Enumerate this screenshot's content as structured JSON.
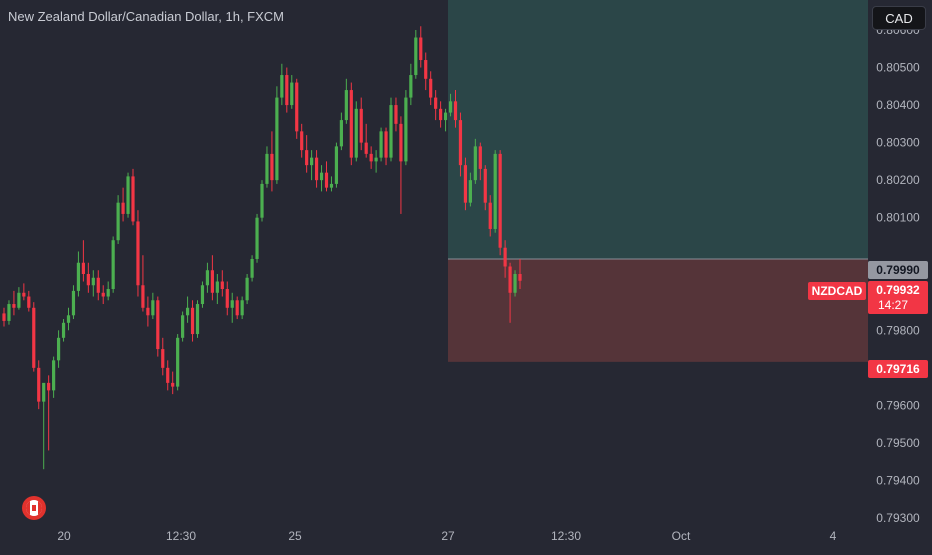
{
  "header": {
    "title": "New Zealand Dollar/Canadian Dollar, 1h, FXCM",
    "currency_button": "CAD"
  },
  "colors": {
    "background": "#262833",
    "bull": "#4caf50",
    "bear": "#f23645",
    "profit_zone": "#2b4648",
    "loss_zone": "#553439",
    "axis_text": "#b2b5be"
  },
  "price_tags": {
    "entry": "0.79990",
    "current": "0.79932",
    "countdown": "14:27",
    "symbol": "NZDCAD",
    "stop": "0.79716"
  },
  "chart_data": {
    "type": "candlestick",
    "symbol": "NZDCAD",
    "timeframe": "1h",
    "y_ticks": [
      "0.80600",
      "0.80500",
      "0.80400",
      "0.80300",
      "0.80200",
      "0.80100",
      "0.79800",
      "0.79700",
      "0.79600",
      "0.79500",
      "0.79400",
      "0.79300"
    ],
    "x_ticks": [
      "20",
      "12:30",
      "25",
      "27",
      "12:30",
      "Oct",
      "4"
    ],
    "ylim": [
      0.793,
      0.807
    ],
    "position": {
      "type": "long",
      "entry": 0.7999,
      "stop": 0.79716,
      "target": 0.807
    },
    "candles": [
      [
        0.79845,
        0.7986,
        0.7981,
        0.79825
      ],
      [
        0.79825,
        0.7988,
        0.79815,
        0.7987
      ],
      [
        0.7987,
        0.79905,
        0.7984,
        0.7986
      ],
      [
        0.7986,
        0.79915,
        0.79855,
        0.799
      ],
      [
        0.799,
        0.79925,
        0.7988,
        0.7989
      ],
      [
        0.7989,
        0.79905,
        0.7985,
        0.7986
      ],
      [
        0.7986,
        0.79875,
        0.7969,
        0.797
      ],
      [
        0.797,
        0.7972,
        0.7959,
        0.7961
      ],
      [
        0.7961,
        0.7965,
        0.7943,
        0.7966
      ],
      [
        0.7966,
        0.7968,
        0.7948,
        0.7964
      ],
      [
        0.7964,
        0.7973,
        0.7962,
        0.7972
      ],
      [
        0.7972,
        0.798,
        0.797,
        0.7978
      ],
      [
        0.7978,
        0.7983,
        0.7977,
        0.7982
      ],
      [
        0.7982,
        0.7986,
        0.798,
        0.7984
      ],
      [
        0.7984,
        0.7992,
        0.7983,
        0.79905
      ],
      [
        0.79905,
        0.8001,
        0.7989,
        0.7998
      ],
      [
        0.7998,
        0.8004,
        0.7993,
        0.7995
      ],
      [
        0.7995,
        0.7998,
        0.799,
        0.7992
      ],
      [
        0.7992,
        0.7996,
        0.7989,
        0.7994
      ],
      [
        0.7994,
        0.7996,
        0.7988,
        0.799
      ],
      [
        0.799,
        0.7992,
        0.7987,
        0.7989
      ],
      [
        0.7989,
        0.7993,
        0.7988,
        0.7991
      ],
      [
        0.7991,
        0.8005,
        0.799,
        0.8004
      ],
      [
        0.8004,
        0.8016,
        0.8003,
        0.8014
      ],
      [
        0.8014,
        0.8018,
        0.8009,
        0.8011
      ],
      [
        0.8011,
        0.8022,
        0.801,
        0.8021
      ],
      [
        0.8021,
        0.8023,
        0.8008,
        0.8009
      ],
      [
        0.8009,
        0.8012,
        0.7989,
        0.7992
      ],
      [
        0.7992,
        0.8,
        0.7985,
        0.7986
      ],
      [
        0.7986,
        0.7989,
        0.7981,
        0.7984
      ],
      [
        0.7984,
        0.799,
        0.7983,
        0.7988
      ],
      [
        0.7988,
        0.7989,
        0.7973,
        0.7975
      ],
      [
        0.7975,
        0.7978,
        0.7968,
        0.797
      ],
      [
        0.797,
        0.7972,
        0.7964,
        0.7966
      ],
      [
        0.7966,
        0.7969,
        0.7963,
        0.7965
      ],
      [
        0.7965,
        0.7979,
        0.7964,
        0.7978
      ],
      [
        0.7978,
        0.7985,
        0.7977,
        0.7984
      ],
      [
        0.7984,
        0.7989,
        0.7982,
        0.7986
      ],
      [
        0.7986,
        0.7988,
        0.7977,
        0.7979
      ],
      [
        0.7979,
        0.7988,
        0.7978,
        0.7987
      ],
      [
        0.7987,
        0.7993,
        0.7986,
        0.7992
      ],
      [
        0.7992,
        0.7998,
        0.799,
        0.7996
      ],
      [
        0.7996,
        0.8,
        0.7988,
        0.799
      ],
      [
        0.799,
        0.7995,
        0.7987,
        0.7993
      ],
      [
        0.7993,
        0.7996,
        0.7989,
        0.7991
      ],
      [
        0.7991,
        0.7993,
        0.7984,
        0.7986
      ],
      [
        0.7986,
        0.799,
        0.7982,
        0.7988
      ],
      [
        0.7988,
        0.7989,
        0.7983,
        0.7984
      ],
      [
        0.7984,
        0.7989,
        0.7983,
        0.7988
      ],
      [
        0.7988,
        0.7995,
        0.7987,
        0.7994
      ],
      [
        0.7994,
        0.8,
        0.7993,
        0.7999
      ],
      [
        0.7999,
        0.8011,
        0.7998,
        0.801
      ],
      [
        0.801,
        0.802,
        0.8009,
        0.8019
      ],
      [
        0.8019,
        0.8029,
        0.8018,
        0.8027
      ],
      [
        0.8027,
        0.8033,
        0.8017,
        0.802
      ],
      [
        0.802,
        0.8045,
        0.8019,
        0.8042
      ],
      [
        0.8042,
        0.8051,
        0.804,
        0.8048
      ],
      [
        0.8048,
        0.805,
        0.8038,
        0.804
      ],
      [
        0.804,
        0.8048,
        0.8039,
        0.8046
      ],
      [
        0.8046,
        0.8047,
        0.8031,
        0.8033
      ],
      [
        0.8033,
        0.8035,
        0.8026,
        0.8028
      ],
      [
        0.8028,
        0.8032,
        0.8022,
        0.8024
      ],
      [
        0.8024,
        0.8028,
        0.802,
        0.8026
      ],
      [
        0.8026,
        0.8028,
        0.8018,
        0.802
      ],
      [
        0.802,
        0.8024,
        0.8017,
        0.8022
      ],
      [
        0.8022,
        0.8025,
        0.8017,
        0.8018
      ],
      [
        0.8018,
        0.8021,
        0.8017,
        0.8019
      ],
      [
        0.8019,
        0.803,
        0.8018,
        0.8029
      ],
      [
        0.8029,
        0.8038,
        0.8028,
        0.8036
      ],
      [
        0.8036,
        0.8047,
        0.8035,
        0.8044
      ],
      [
        0.8044,
        0.8046,
        0.8024,
        0.8026
      ],
      [
        0.8026,
        0.8041,
        0.8025,
        0.8039
      ],
      [
        0.8039,
        0.8042,
        0.8028,
        0.803
      ],
      [
        0.803,
        0.8035,
        0.8026,
        0.8027
      ],
      [
        0.8027,
        0.8029,
        0.8023,
        0.8025
      ],
      [
        0.8025,
        0.8028,
        0.8022,
        0.8026
      ],
      [
        0.8026,
        0.8034,
        0.8025,
        0.8033
      ],
      [
        0.8033,
        0.8034,
        0.8024,
        0.8026
      ],
      [
        0.8026,
        0.8042,
        0.8025,
        0.804
      ],
      [
        0.804,
        0.8042,
        0.8033,
        0.8035
      ],
      [
        0.8035,
        0.8037,
        0.8011,
        0.8025
      ],
      [
        0.8025,
        0.8044,
        0.8024,
        0.8042
      ],
      [
        0.8042,
        0.8051,
        0.804,
        0.8048
      ],
      [
        0.8048,
        0.806,
        0.8047,
        0.8058
      ],
      [
        0.8058,
        0.8061,
        0.805,
        0.8052
      ],
      [
        0.8052,
        0.8054,
        0.8044,
        0.8047
      ],
      [
        0.8047,
        0.8049,
        0.804,
        0.8042
      ],
      [
        0.8042,
        0.8044,
        0.8036,
        0.8039
      ],
      [
        0.8039,
        0.8041,
        0.8034,
        0.8036
      ],
      [
        0.8036,
        0.8039,
        0.8033,
        0.8038
      ],
      [
        0.8038,
        0.8043,
        0.8037,
        0.8041
      ],
      [
        0.8041,
        0.8044,
        0.8034,
        0.8036
      ],
      [
        0.8036,
        0.8038,
        0.8021,
        0.8024
      ],
      [
        0.8024,
        0.8026,
        0.8012,
        0.8014
      ],
      [
        0.8014,
        0.8022,
        0.8013,
        0.802
      ],
      [
        0.802,
        0.8031,
        0.8019,
        0.8029
      ],
      [
        0.8029,
        0.803,
        0.802,
        0.8023
      ],
      [
        0.8023,
        0.8024,
        0.8012,
        0.8014
      ],
      [
        0.8014,
        0.8016,
        0.8005,
        0.8007
      ],
      [
        0.8007,
        0.8028,
        0.8006,
        0.8027
      ],
      [
        0.8027,
        0.8028,
        0.8,
        0.8002
      ],
      [
        0.8002,
        0.8004,
        0.7994,
        0.7997
      ],
      [
        0.7997,
        0.7998,
        0.7982,
        0.799
      ],
      [
        0.799,
        0.7996,
        0.7989,
        0.7995
      ],
      [
        0.7995,
        0.7999,
        0.7991,
        0.79932
      ]
    ]
  }
}
